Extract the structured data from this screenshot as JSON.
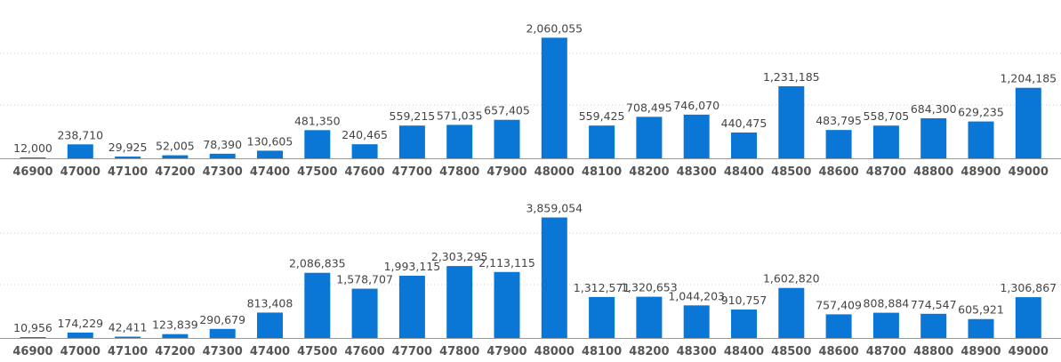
{
  "chart_data": [
    {
      "type": "bar",
      "categories": [
        "46900",
        "47000",
        "47100",
        "47200",
        "47300",
        "47400",
        "47500",
        "47600",
        "47700",
        "47800",
        "47900",
        "48000",
        "48100",
        "48200",
        "48300",
        "48400",
        "48500",
        "48600",
        "48700",
        "48800",
        "48900",
        "49000"
      ],
      "values": [
        12000,
        238710,
        29925,
        52005,
        78390,
        130605,
        481350,
        240465,
        559215,
        571035,
        657405,
        2060055,
        559425,
        708495,
        746070,
        440475,
        1231185,
        483795,
        558705,
        684300,
        629235,
        1204185
      ],
      "value_labels": [
        "12,000",
        "238,710",
        "29,925",
        "52,005",
        "78,390",
        "130,605",
        "481,350",
        "240,465",
        "559,215",
        "571,035",
        "657,405",
        "2,060,055",
        "559,425",
        "708,495",
        "746,070",
        "440,475",
        "1,231,185",
        "483,795",
        "558,705",
        "684,300",
        "629,235",
        "1,204,185"
      ],
      "ylim": [
        0,
        2400000
      ],
      "grid": true,
      "bar_color": "#0a77d6"
    },
    {
      "type": "bar",
      "categories": [
        "46900",
        "47000",
        "47100",
        "47200",
        "47300",
        "47400",
        "47500",
        "47600",
        "47700",
        "47800",
        "47900",
        "48000",
        "48100",
        "48200",
        "48300",
        "48400",
        "48500",
        "48600",
        "48700",
        "48800",
        "48900",
        "49000"
      ],
      "values": [
        10956,
        174229,
        42411,
        123839,
        290679,
        813408,
        2086835,
        1578707,
        1993115,
        2303295,
        2113115,
        3859054,
        1312571,
        1320653,
        1044203,
        910757,
        1602820,
        757409,
        808884,
        774547,
        605921,
        1306867
      ],
      "value_labels": [
        "10,956",
        "174,229",
        "42,411",
        "123,839",
        "290,679",
        "813,408",
        "2,086,835",
        "1,578,707",
        "1,993,115",
        "2,303,295",
        "2,113,115",
        "3,859,054",
        "1,312,571",
        "1,320,653",
        "1,044,203",
        "910,757",
        "1,602,820",
        "757,409",
        "808,884",
        "774,547",
        "605,921",
        "1,306,867"
      ],
      "ylim": [
        0,
        4500000
      ],
      "grid": true,
      "bar_color": "#0a77d6"
    }
  ],
  "colors": {
    "bar": "#0a77d6",
    "value_label": "#444444",
    "axis_label": "#555555",
    "grid": "#cccccc",
    "axis_line": "#999999"
  }
}
